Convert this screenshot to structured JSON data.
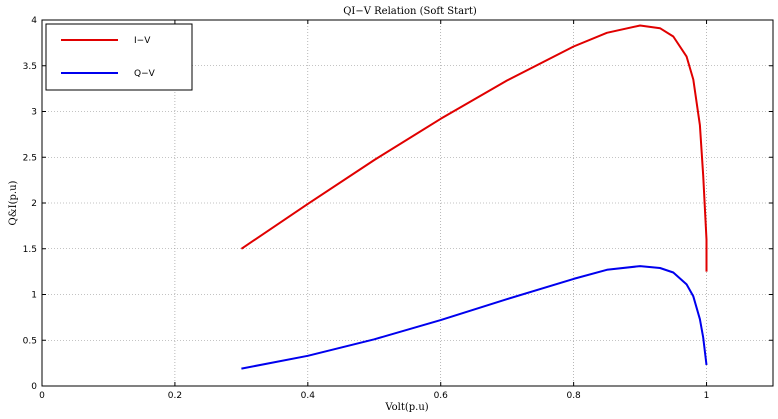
{
  "chart_data": {
    "type": "line",
    "title": "QI−V Relation (Soft Start)",
    "xlabel": "Volt(p.u)",
    "ylabel": "Q&I(p.u)",
    "xlim": [
      0,
      1.1
    ],
    "ylim": [
      0,
      4
    ],
    "xticks": [
      0,
      0.2,
      0.4,
      0.6,
      0.8,
      1
    ],
    "xtick_labels": [
      "0",
      "0.2",
      "0.4",
      "0.6",
      "0.8",
      "1"
    ],
    "yticks": [
      0,
      0.5,
      1,
      1.5,
      2,
      2.5,
      3,
      3.5,
      4
    ],
    "ytick_labels": [
      "0",
      "0.5",
      "1",
      "1.5",
      "2",
      "2.5",
      "3",
      "3.5",
      "4"
    ],
    "grid": true,
    "legend_position": "top-left",
    "series": [
      {
        "name": "I−V",
        "color": "#e00000",
        "x": [
          0.3,
          0.4,
          0.5,
          0.6,
          0.7,
          0.8,
          0.85,
          0.9,
          0.93,
          0.95,
          0.97,
          0.98,
          0.99,
          0.995,
          1.0,
          1.0
        ],
        "y": [
          1.5,
          1.99,
          2.47,
          2.92,
          3.34,
          3.71,
          3.86,
          3.94,
          3.91,
          3.82,
          3.6,
          3.35,
          2.85,
          2.3,
          1.6,
          1.25
        ]
      },
      {
        "name": "Q−V",
        "color": "#0000ee",
        "x": [
          0.3,
          0.4,
          0.5,
          0.6,
          0.7,
          0.8,
          0.85,
          0.9,
          0.93,
          0.95,
          0.97,
          0.98,
          0.99,
          0.995,
          1.0
        ],
        "y": [
          0.19,
          0.33,
          0.51,
          0.72,
          0.95,
          1.17,
          1.27,
          1.31,
          1.29,
          1.24,
          1.11,
          0.98,
          0.73,
          0.53,
          0.23
        ]
      }
    ]
  }
}
